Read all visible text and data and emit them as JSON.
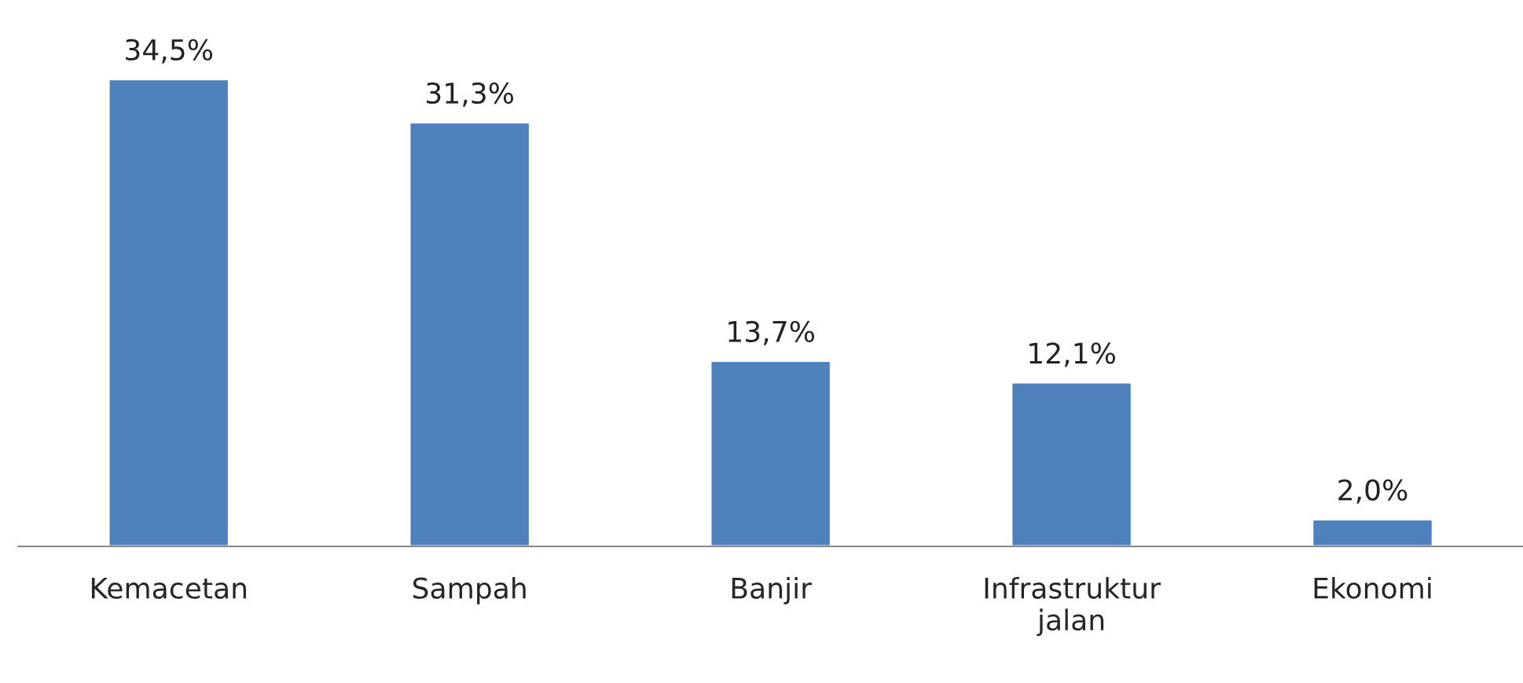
{
  "chart_data": {
    "type": "bar",
    "categories": [
      "Kemacetan",
      "Sampah",
      "Banjir",
      "Infrastruktur\njalan",
      "Ekonomi"
    ],
    "values": [
      34.5,
      31.3,
      13.7,
      12.1,
      2.0
    ],
    "value_labels": [
      "34,5%",
      "31,3%",
      "13,7%",
      "12,1%",
      "2,0%"
    ],
    "color": "#4f81bd",
    "grid": false,
    "legend": false
  }
}
